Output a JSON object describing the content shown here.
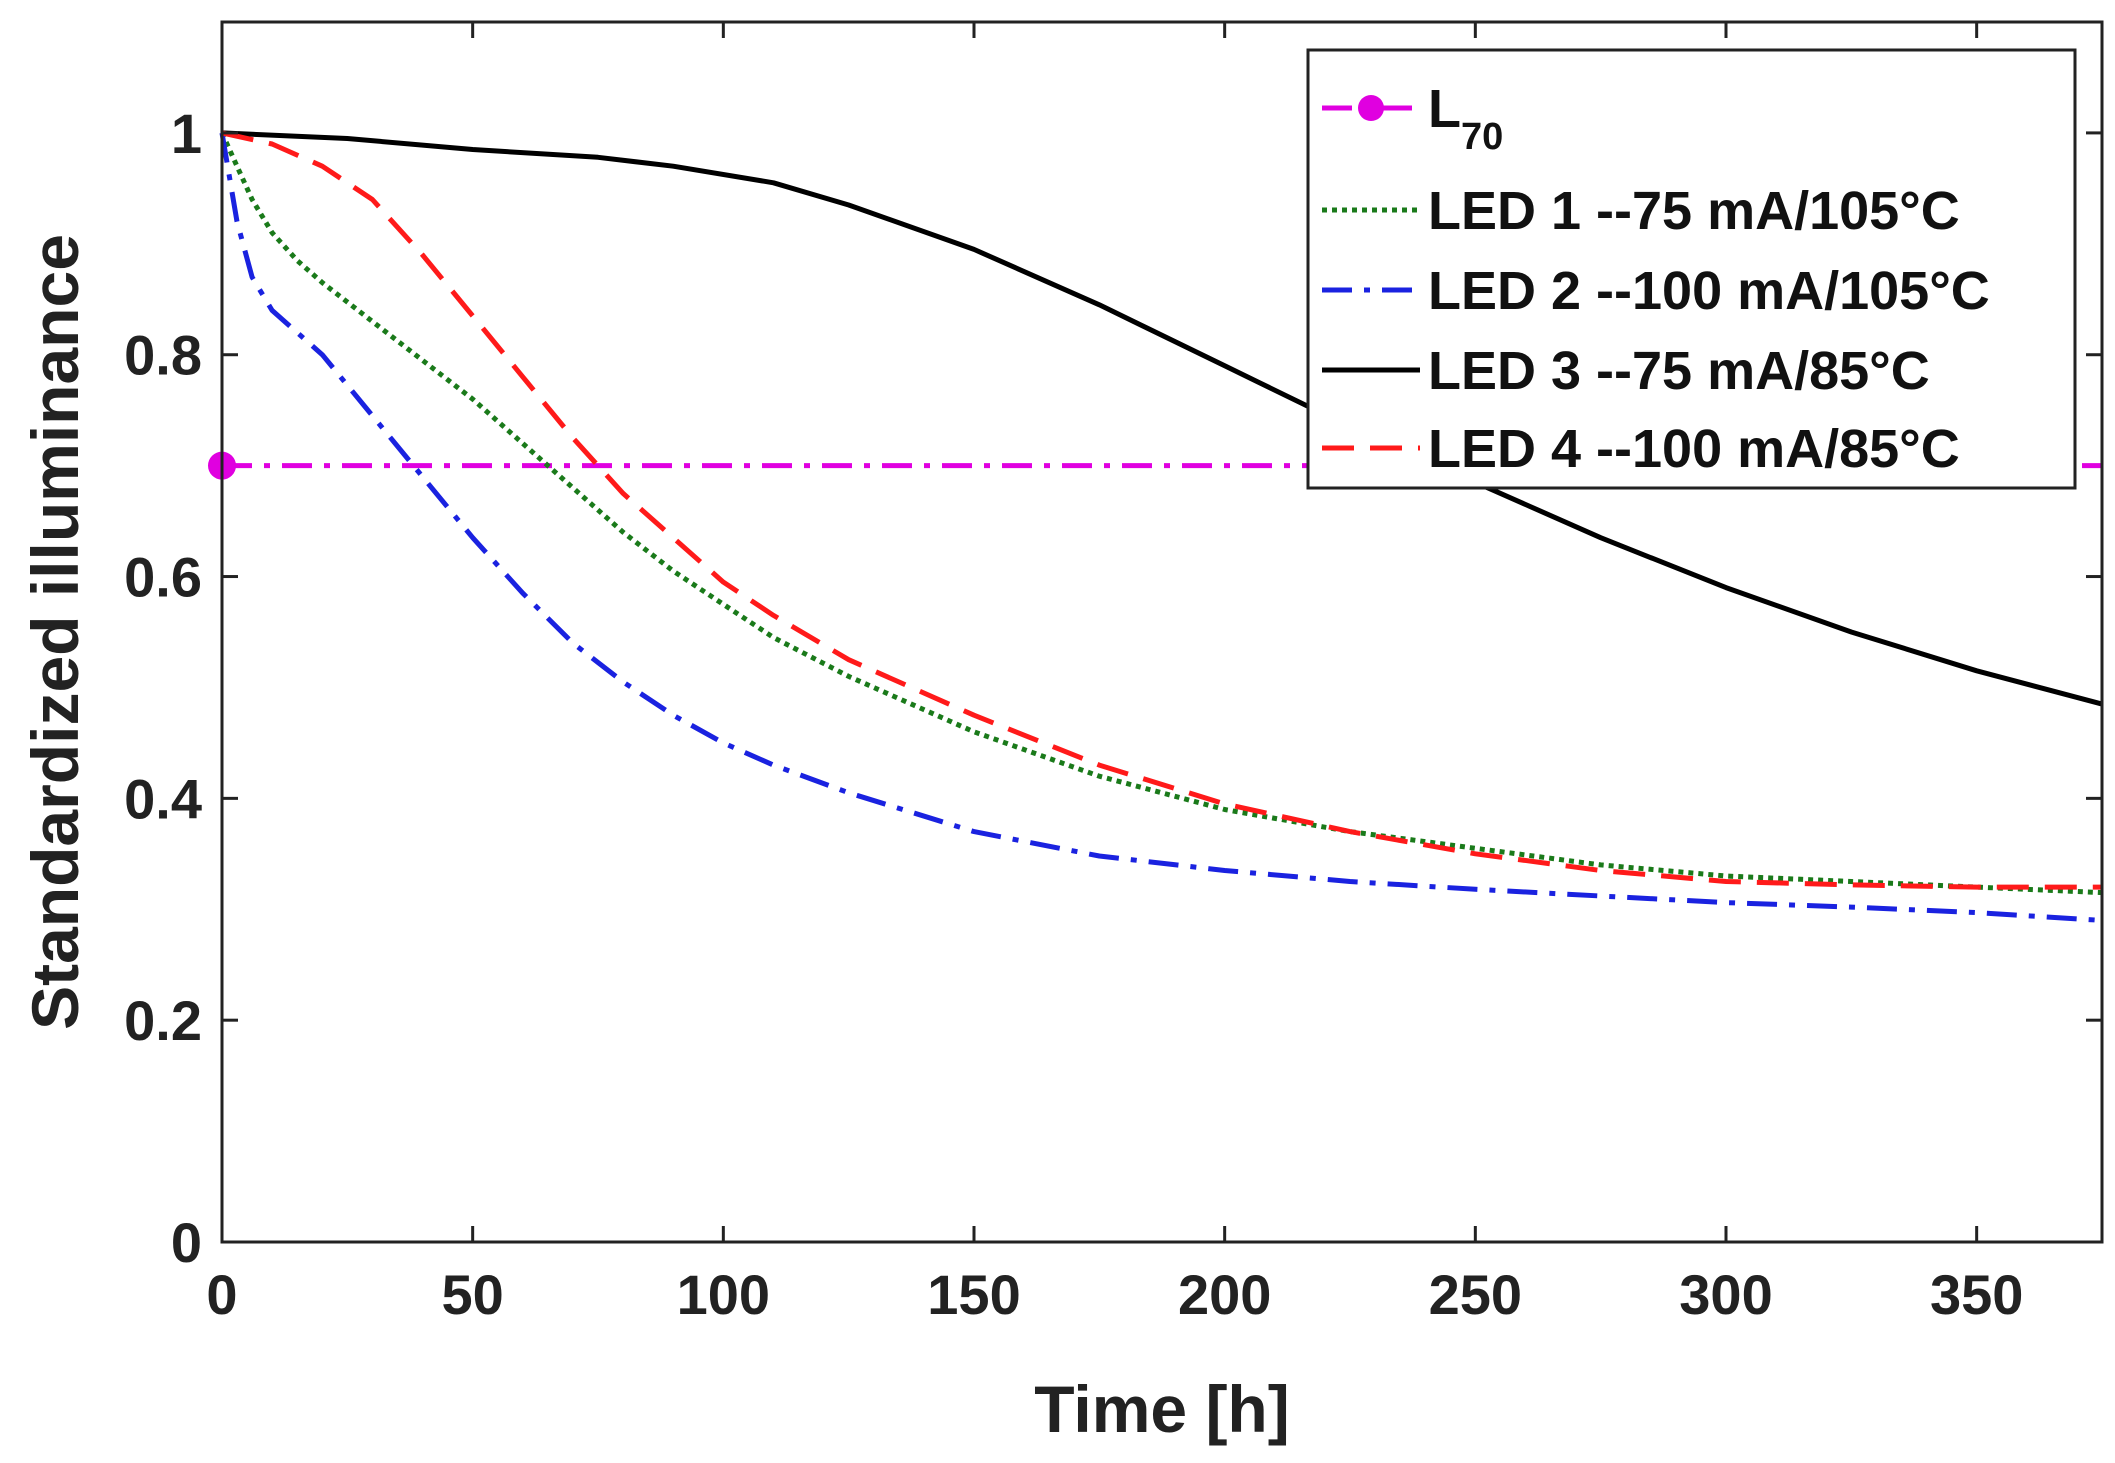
{
  "chart_data": {
    "type": "line",
    "xlabel": "Time [h]",
    "ylabel": "Standardized illuminance",
    "xlim": [
      0,
      375
    ],
    "ylim": [
      0,
      1.1
    ],
    "x_ticks": [
      0,
      50,
      100,
      150,
      200,
      250,
      300,
      350
    ],
    "y_ticks": [
      0,
      0.2,
      0.4,
      0.6,
      0.8,
      1
    ],
    "x_tick_labels": [
      "0",
      "50",
      "100",
      "150",
      "200",
      "250",
      "300",
      "350"
    ],
    "y_tick_labels": [
      "0",
      "0.2",
      "0.4",
      "0.6",
      "0.8",
      "1"
    ],
    "grid": false,
    "legend_position": "top-right",
    "series": [
      {
        "name": "L",
        "name_subscript": "70",
        "color": "#e000e0",
        "style": "dashdot",
        "marker": "circle",
        "x": [
          0,
          375
        ],
        "y": [
          0.7,
          0.7
        ]
      },
      {
        "name": "LED 1 --75 mA/105°C",
        "color": "#1a7a1a",
        "style": "dotted",
        "x": [
          0,
          3,
          6,
          10,
          15,
          20,
          30,
          40,
          50,
          60,
          70,
          80,
          90,
          100,
          110,
          125,
          150,
          175,
          200,
          225,
          250,
          275,
          300,
          325,
          350,
          375
        ],
        "y": [
          1.0,
          0.97,
          0.94,
          0.91,
          0.885,
          0.865,
          0.83,
          0.795,
          0.76,
          0.72,
          0.68,
          0.64,
          0.605,
          0.575,
          0.545,
          0.51,
          0.46,
          0.42,
          0.39,
          0.37,
          0.355,
          0.34,
          0.33,
          0.325,
          0.32,
          0.315
        ]
      },
      {
        "name": "LED 2 --100 mA/105°C",
        "color": "#1a22e0",
        "style": "dashdot",
        "x": [
          0,
          3,
          6,
          10,
          20,
          30,
          40,
          50,
          60,
          70,
          80,
          90,
          100,
          110,
          125,
          150,
          175,
          200,
          225,
          250,
          275,
          300,
          325,
          350,
          375
        ],
        "y": [
          1.0,
          0.92,
          0.87,
          0.84,
          0.8,
          0.745,
          0.69,
          0.635,
          0.585,
          0.54,
          0.505,
          0.475,
          0.45,
          0.43,
          0.405,
          0.37,
          0.348,
          0.335,
          0.325,
          0.318,
          0.312,
          0.306,
          0.302,
          0.297,
          0.29
        ]
      },
      {
        "name": "LED 3 --75 mA/85°C",
        "color": "#000000",
        "style": "solid",
        "x": [
          0,
          25,
          50,
          75,
          90,
          110,
          125,
          150,
          175,
          200,
          225,
          250,
          275,
          300,
          325,
          350,
          375
        ],
        "y": [
          1.0,
          0.995,
          0.985,
          0.978,
          0.97,
          0.955,
          0.935,
          0.895,
          0.845,
          0.79,
          0.735,
          0.685,
          0.635,
          0.59,
          0.55,
          0.515,
          0.485
        ]
      },
      {
        "name": "LED 4 --100 mA/85°C",
        "color": "#ff1a1a",
        "style": "dashed",
        "x": [
          0,
          10,
          20,
          30,
          40,
          50,
          60,
          70,
          80,
          90,
          100,
          110,
          125,
          150,
          175,
          200,
          225,
          250,
          275,
          300,
          325,
          350,
          375
        ],
        "y": [
          1.0,
          0.99,
          0.97,
          0.94,
          0.89,
          0.835,
          0.78,
          0.725,
          0.675,
          0.635,
          0.595,
          0.565,
          0.525,
          0.475,
          0.43,
          0.395,
          0.37,
          0.35,
          0.335,
          0.325,
          0.322,
          0.32,
          0.32
        ]
      }
    ]
  }
}
